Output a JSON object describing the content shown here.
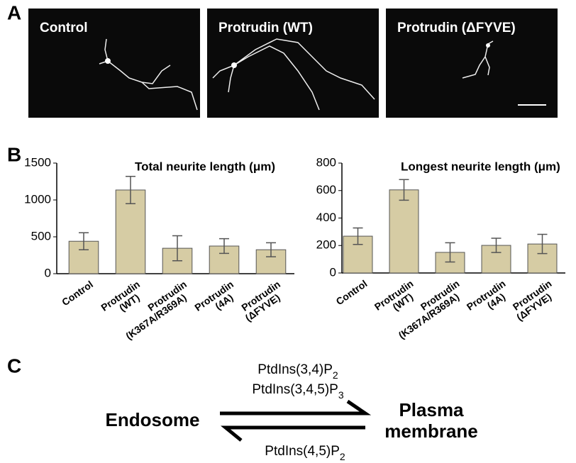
{
  "panel_labels": [
    "A",
    "B",
    "C"
  ],
  "images": [
    {
      "label": "Control"
    },
    {
      "label": "Protrudin (WT)"
    },
    {
      "label": "Protrudin (ΔFYVE)"
    }
  ],
  "chart_data": [
    {
      "type": "bar",
      "title": "Total neurite length (μm)",
      "categories": [
        [
          "Control"
        ],
        [
          "Protrudin",
          "(WT)"
        ],
        [
          "Protrudin",
          "(K367A/R369A)"
        ],
        [
          "Protrudin",
          "(4A)"
        ],
        [
          "Protrudin",
          "(ΔFYVE)"
        ]
      ],
      "values": [
        440,
        1135,
        345,
        375,
        325
      ],
      "errors": [
        115,
        185,
        170,
        100,
        95
      ],
      "color": "#d6cca4",
      "ylim": [
        0,
        1500
      ],
      "yticks": [
        0,
        500,
        1000,
        1500
      ]
    },
    {
      "type": "bar",
      "title": "Longest neurite length (μm)",
      "categories": [
        [
          "Control"
        ],
        [
          "Protrudin",
          "(WT)"
        ],
        [
          "Protrudin",
          "(K367A/R369A)"
        ],
        [
          "Protrudin",
          "(4A)"
        ],
        [
          "Protrudin",
          "(ΔFYVE)"
        ]
      ],
      "values": [
        268,
        605,
        150,
        201,
        211
      ],
      "errors": [
        60,
        75,
        70,
        52,
        70
      ],
      "color": "#d6cca4",
      "ylim": [
        0,
        800
      ],
      "yticks": [
        0,
        200,
        400,
        600,
        800
      ]
    }
  ],
  "diagram": {
    "left": "Endosome",
    "right": [
      "Plasma",
      "membrane"
    ],
    "forward": [
      {
        "text": "PtdIns(3,4)P",
        "sub": "2"
      },
      {
        "text": "PtdIns(3,4,5)P",
        "sub": "3"
      }
    ],
    "reverse": [
      {
        "text": "PtdIns(4,5)P",
        "sub": "2"
      }
    ]
  }
}
